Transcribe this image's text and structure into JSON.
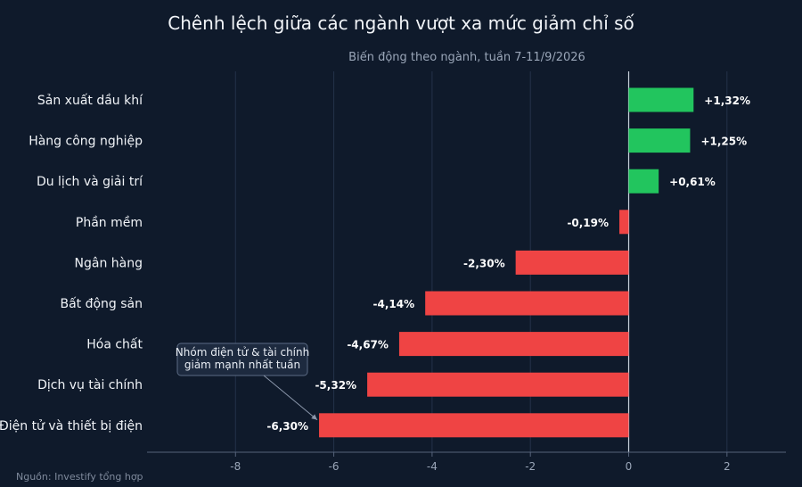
{
  "chart_data": {
    "type": "bar",
    "orientation": "horizontal",
    "title": "Chênh lệch giữa các ngành vượt xa mức giảm chỉ số",
    "subtitle": "Biến động theo ngành, tuần 7-11/9/2026",
    "categories": [
      "Sản xuất dầu khí",
      "Hàng công nghiệp",
      "Du lịch và giải trí",
      "Phần mềm",
      "Ngân hàng",
      "Bất động sản",
      "Hóa chất",
      "Dịch vụ tài chính",
      "Điện tử và thiết bị điện"
    ],
    "values": [
      1.32,
      1.25,
      0.61,
      -0.19,
      -2.3,
      -4.14,
      -4.67,
      -5.32,
      -6.3
    ],
    "data_labels": [
      "+1,32%",
      "+1,25%",
      "+0,61%",
      "-0,19%",
      "-2,30%",
      "-4,14%",
      "-4,67%",
      "-5,32%",
      "-6,30%"
    ],
    "xlim": [
      -9.8,
      3.2
    ],
    "xticks": [
      -8,
      -6,
      -4,
      -2,
      0,
      2
    ],
    "xtick_labels": [
      "-8",
      "-6",
      "-4",
      "-2",
      "0",
      "2"
    ],
    "grid": "vertical",
    "colors": {
      "positive": "#22c55e",
      "negative": "#ef4444",
      "background": "#0f1a2b",
      "grid": "#24324a"
    },
    "annotation": {
      "lines": [
        "Nhóm điện tử & tài chính",
        "giảm mạnh nhất tuần"
      ],
      "target_category": "Điện tử và thiết bị điện"
    },
    "source": "Nguồn: Investify tổng hợp"
  }
}
